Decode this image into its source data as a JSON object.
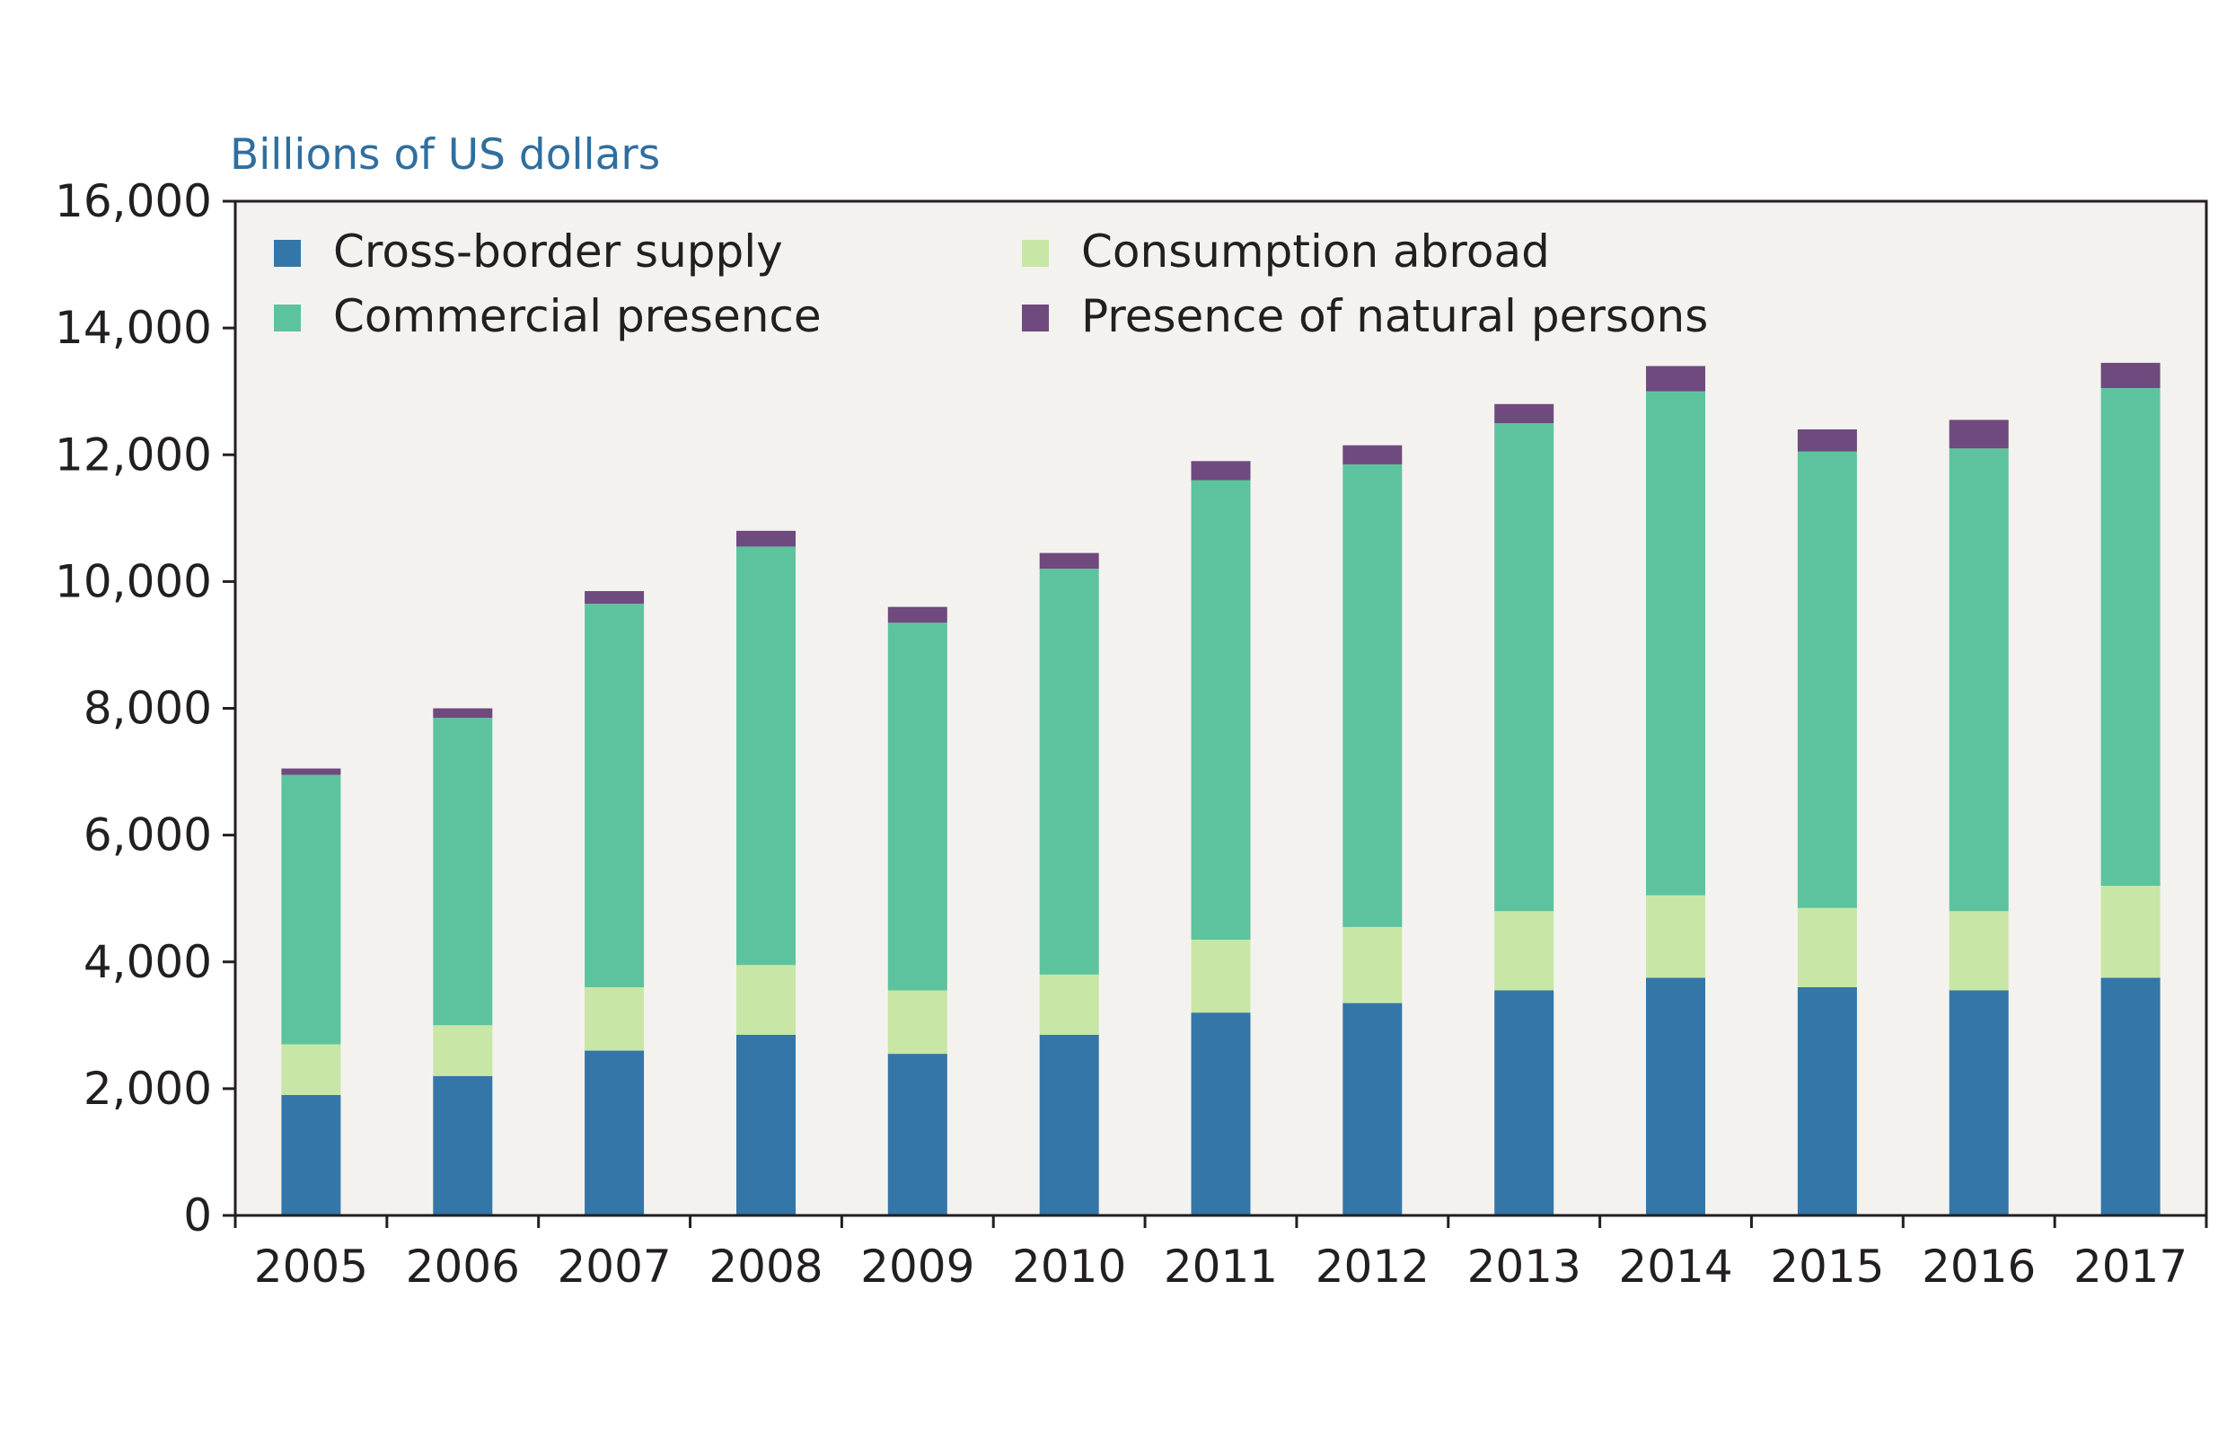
{
  "chart_data": {
    "type": "bar",
    "stacked": true,
    "unit_label": "Billions of US dollars",
    "categories": [
      "2005",
      "2006",
      "2007",
      "2008",
      "2009",
      "2010",
      "2011",
      "2012",
      "2013",
      "2014",
      "2015",
      "2016",
      "2017"
    ],
    "series": [
      {
        "name": "Cross-border supply",
        "color": "#3476a8",
        "values": [
          1900,
          2200,
          2600,
          2850,
          2550,
          2850,
          3200,
          3350,
          3550,
          3750,
          3600,
          3550,
          3750
        ]
      },
      {
        "name": "Consumption abroad",
        "color": "#c8e6a6",
        "values": [
          800,
          800,
          1000,
          1100,
          1000,
          950,
          1150,
          1200,
          1250,
          1300,
          1250,
          1250,
          1450
        ]
      },
      {
        "name": "Commercial presence",
        "color": "#5dc39e",
        "values": [
          4250,
          4850,
          6050,
          6600,
          5800,
          6400,
          7250,
          7300,
          7700,
          7950,
          7200,
          7300,
          7850
        ]
      },
      {
        "name": "Presence of natural persons",
        "color": "#6e4a7e",
        "values": [
          100,
          150,
          200,
          250,
          250,
          250,
          300,
          300,
          300,
          400,
          350,
          450,
          400
        ]
      }
    ],
    "y_ticks": [
      "0",
      "2,000",
      "4,000",
      "6,000",
      "8,000",
      "10,000",
      "12,000",
      "14,000",
      "16,000"
    ],
    "ylim": [
      0,
      16000
    ],
    "grid": false,
    "legend_position": "top-left, inside plot, two columns",
    "plot_background": "#f4f2ee"
  }
}
